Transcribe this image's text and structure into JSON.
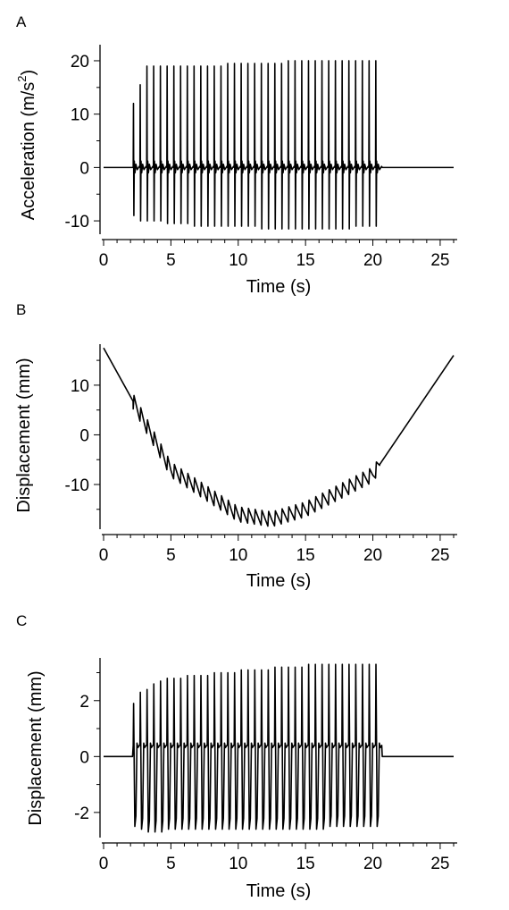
{
  "chart_data": [
    {
      "type": "line",
      "panel_label": "A",
      "xlabel": "Time (s)",
      "ylabel": "Acceleration (m/s",
      "ylabel_sup": "2",
      "ylabel_end": ")",
      "xlim": [
        0,
        26
      ],
      "ylim": [
        -12.5,
        21
      ],
      "xticks": [
        0,
        5,
        10,
        15,
        20,
        25
      ],
      "yticks": [
        -10,
        0,
        10,
        20
      ],
      "tick_labels_x": [
        "0",
        "5",
        "10",
        "15",
        "20",
        "25"
      ],
      "tick_labels_y": [
        "-10",
        "0",
        "10",
        "20"
      ],
      "signal": {
        "quiet_level": 0,
        "pulse_times": [
          2.2,
          2.7,
          3.2,
          3.7,
          4.2,
          4.7,
          5.2,
          5.7,
          6.2,
          6.7,
          7.2,
          7.7,
          8.2,
          8.7,
          9.2,
          9.7,
          10.2,
          10.7,
          11.2,
          11.7,
          12.2,
          12.7,
          13.2,
          13.7,
          14.2,
          14.7,
          15.2,
          15.7,
          16.2,
          16.7,
          17.2,
          17.7,
          18.2,
          18.7,
          19.2,
          19.7,
          20.2
        ],
        "pulse_peaks": [
          12,
          15.5,
          19,
          19,
          19,
          19,
          19,
          19,
          19,
          19,
          19,
          19,
          19,
          19,
          19.5,
          19.5,
          19.5,
          19.5,
          19.5,
          19.5,
          19.5,
          19.5,
          19.5,
          20,
          20,
          20,
          20,
          20,
          20,
          20,
          20,
          20,
          20,
          20,
          20,
          20,
          20
        ],
        "pulse_troughs": [
          -9,
          -10,
          -10,
          -10,
          -10,
          -10.5,
          -10.5,
          -10.5,
          -10.5,
          -11,
          -11,
          -11,
          -11,
          -11,
          -11,
          -11,
          -11,
          -11,
          -11,
          -11.5,
          -11.5,
          -11.5,
          -11.5,
          -11.5,
          -11.5,
          -11.5,
          -11.5,
          -11.5,
          -11.5,
          -11.5,
          -11.5,
          -11.5,
          -11.5,
          -11,
          -11,
          -11,
          -11
        ]
      }
    },
    {
      "type": "line",
      "panel_label": "B",
      "xlabel": "Time (s)",
      "ylabel": "Displacement (mm)",
      "xlim": [
        0,
        26
      ],
      "ylim": [
        -19,
        17
      ],
      "xticks": [
        0,
        5,
        10,
        15,
        20,
        25
      ],
      "yticks": [
        -10,
        0,
        10
      ],
      "tick_labels_x": [
        "0",
        "5",
        "10",
        "15",
        "20",
        "25"
      ],
      "tick_labels_y": [
        "-10",
        "0",
        "10"
      ],
      "signal": {
        "baseline_curve": {
          "x": [
            0,
            5,
            10,
            12.5,
            15,
            20,
            26
          ],
          "y": [
            17.5,
            -7,
            -16,
            -17,
            -15,
            -8,
            16
          ]
        },
        "oscillation_start": 2.2,
        "oscillation_end": 20.5,
        "oscillation_period": 0.5,
        "oscillation_peak_to_peak": 3
      }
    },
    {
      "type": "line",
      "panel_label": "C",
      "xlabel": "Time (s)",
      "ylabel": "Displacement (mm)",
      "xlim": [
        0,
        26
      ],
      "ylim": [
        -2.9,
        3.4
      ],
      "xticks": [
        0,
        5,
        10,
        15,
        20,
        25
      ],
      "yticks": [
        -2,
        0,
        2
      ],
      "tick_labels_x": [
        "0",
        "5",
        "10",
        "15",
        "20",
        "25"
      ],
      "tick_labels_y": [
        "-2",
        "0",
        "2"
      ],
      "signal": {
        "quiet_level": 0,
        "pulse_times": [
          2.2,
          2.7,
          3.2,
          3.7,
          4.2,
          4.7,
          5.2,
          5.7,
          6.2,
          6.7,
          7.2,
          7.7,
          8.2,
          8.7,
          9.2,
          9.7,
          10.2,
          10.7,
          11.2,
          11.7,
          12.2,
          12.7,
          13.2,
          13.7,
          14.2,
          14.7,
          15.2,
          15.7,
          16.2,
          16.7,
          17.2,
          17.7,
          18.2,
          18.7,
          19.2,
          19.7,
          20.2
        ],
        "pulse_peaks": [
          1.9,
          2.3,
          2.4,
          2.6,
          2.7,
          2.8,
          2.8,
          2.8,
          2.9,
          2.9,
          2.9,
          2.9,
          3.0,
          3.0,
          3.0,
          3.0,
          3.1,
          3.1,
          3.1,
          3.1,
          3.1,
          3.2,
          3.2,
          3.2,
          3.2,
          3.2,
          3.3,
          3.3,
          3.3,
          3.3,
          3.3,
          3.3,
          3.3,
          3.3,
          3.3,
          3.3,
          3.3
        ],
        "pulse_troughs": [
          -2.5,
          -2.6,
          -2.7,
          -2.7,
          -2.7,
          -2.6,
          -2.6,
          -2.6,
          -2.6,
          -2.6,
          -2.6,
          -2.6,
          -2.6,
          -2.6,
          -2.6,
          -2.6,
          -2.6,
          -2.6,
          -2.6,
          -2.6,
          -2.6,
          -2.6,
          -2.6,
          -2.6,
          -2.6,
          -2.6,
          -2.6,
          -2.6,
          -2.6,
          -2.5,
          -2.5,
          -2.5,
          -2.5,
          -2.5,
          -2.5,
          -2.5,
          -2.5
        ],
        "plateau_level": 0.4
      }
    }
  ]
}
